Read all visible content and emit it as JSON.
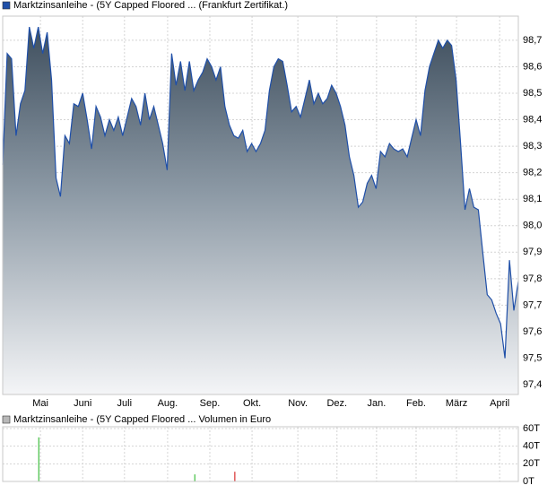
{
  "chart_data": [
    {
      "type": "area",
      "series": [
        {
          "name": "Marktzinsanleihe - (5Y Capped Floored ... (Frankfurt Zertifikat.)",
          "color": "#1f4fa8",
          "values": [
            98.23,
            98.65,
            98.63,
            98.34,
            98.46,
            98.51,
            98.75,
            98.67,
            98.75,
            98.65,
            98.73,
            98.55,
            98.18,
            98.11,
            98.34,
            98.31,
            98.46,
            98.45,
            98.5,
            98.4,
            98.29,
            98.45,
            98.41,
            98.34,
            98.4,
            98.36,
            98.41,
            98.34,
            98.41,
            98.48,
            98.45,
            98.38,
            98.5,
            98.4,
            98.45,
            98.38,
            98.31,
            98.21,
            98.65,
            98.53,
            98.62,
            98.51,
            98.62,
            98.51,
            98.55,
            98.58,
            98.63,
            98.6,
            98.55,
            98.6,
            98.45,
            98.38,
            98.34,
            98.33,
            98.36,
            98.28,
            98.31,
            98.28,
            98.31,
            98.36,
            98.51,
            98.6,
            98.63,
            98.62,
            98.53,
            98.43,
            98.45,
            98.41,
            98.48,
            98.55,
            98.46,
            98.5,
            98.46,
            98.48,
            98.53,
            98.5,
            98.45,
            98.38,
            98.26,
            98.19,
            98.07,
            98.09,
            98.16,
            98.19,
            98.14,
            98.28,
            98.26,
            98.31,
            98.29,
            98.28,
            98.29,
            98.26,
            98.33,
            98.4,
            98.34,
            98.51,
            98.6,
            98.65,
            98.7,
            98.67,
            98.7,
            98.68,
            98.55,
            98.31,
            98.06,
            98.14,
            98.07,
            98.06,
            97.9,
            97.74,
            97.72,
            97.67,
            97.63,
            97.5,
            97.87,
            97.68,
            97.79
          ]
        }
      ],
      "xlim": [
        0,
        116
      ],
      "xticks": [
        {
          "value": 8.5,
          "label": "Mai"
        },
        {
          "value": 18,
          "label": "Juni"
        },
        {
          "value": 27.4,
          "label": "Juli"
        },
        {
          "value": 37.1,
          "label": "Aug."
        },
        {
          "value": 46.6,
          "label": "Sep."
        },
        {
          "value": 56.1,
          "label": "Okt."
        },
        {
          "value": 66.4,
          "label": "Nov."
        },
        {
          "value": 75.2,
          "label": "Dez."
        },
        {
          "value": 84.1,
          "label": "Jan."
        },
        {
          "value": 93,
          "label": "Feb."
        },
        {
          "value": 102.1,
          "label": "März"
        },
        {
          "value": 111.8,
          "label": "April"
        }
      ],
      "ylim": [
        97.363,
        98.791
      ],
      "yticks": [
        {
          "value": 98.7,
          "label": "98,7"
        },
        {
          "value": 98.6,
          "label": "98,6"
        },
        {
          "value": 98.5,
          "label": "98,5"
        },
        {
          "value": 98.4,
          "label": "98,4"
        },
        {
          "value": 98.3,
          "label": "98,3"
        },
        {
          "value": 98.2,
          "label": "98,2"
        },
        {
          "value": 98.1,
          "label": "98,1"
        },
        {
          "value": 98.0,
          "label": "98,0"
        },
        {
          "value": 97.9,
          "label": "97,9"
        },
        {
          "value": 97.8,
          "label": "97,8"
        },
        {
          "value": 97.7,
          "label": "97,7"
        },
        {
          "value": 97.6,
          "label": "97,6"
        },
        {
          "value": 97.5,
          "label": "97,5"
        },
        {
          "value": 97.4,
          "label": "97,4"
        }
      ],
      "grid": true
    },
    {
      "type": "bar",
      "series": [
        {
          "name": "Marktzinsanleihe - (5Y Capped Floored ... Volumen in Euro",
          "color": "#b8b8b8",
          "x": [
            8.1,
            43.2,
            52.2
          ],
          "values": [
            50000,
            8000,
            11000
          ],
          "colors": [
            "#3fbf3f",
            "#3fbf3f",
            "#d83030"
          ]
        }
      ],
      "xlim": [
        0,
        116
      ],
      "xticks": [
        8.5,
        18,
        27.4,
        37.1,
        46.6,
        56.1,
        66.4,
        75.2,
        84.1,
        93,
        102.1,
        111.8
      ],
      "ylim": [
        0,
        62000
      ],
      "yticks": [
        {
          "value": 60000,
          "label": "60T"
        },
        {
          "value": 40000,
          "label": "40T"
        },
        {
          "value": 20000,
          "label": "20T"
        },
        {
          "value": 0,
          "label": "0T"
        }
      ],
      "grid": true
    }
  ]
}
